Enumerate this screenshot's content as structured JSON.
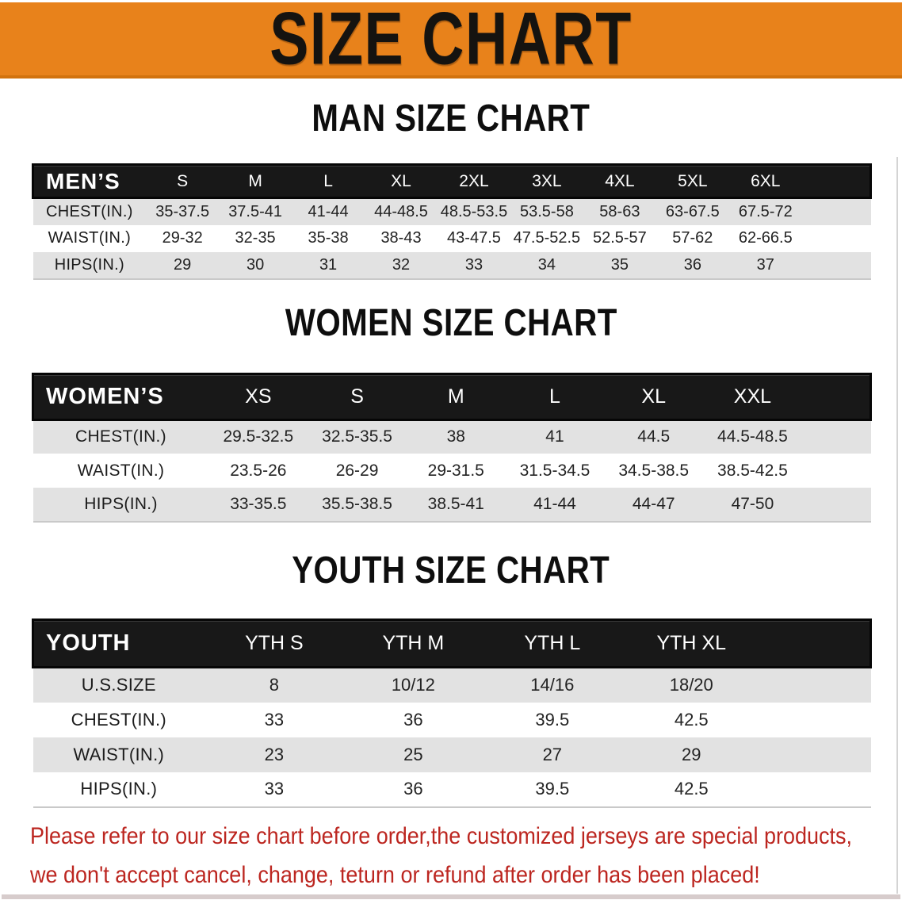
{
  "banner": {
    "title": "SIZE CHART"
  },
  "colors": {
    "accent_orange": "#E8821B",
    "accent_orange_dark": "#D2720D",
    "table_header_black": "#181818",
    "stripe_gray": "#E2E2E2",
    "note_red": "#BC2620"
  },
  "sections": [
    {
      "heading": "MAN SIZE CHART",
      "table": {
        "label": "MEN’S",
        "sizes": [
          "S",
          "M",
          "L",
          "XL",
          "2XL",
          "3XL",
          "4XL",
          "5XL",
          "6XL"
        ],
        "rows": [
          {
            "label": "CHEST(IN.)",
            "values": [
              "35-37.5",
              "37.5-41",
              "41-44",
              "44-48.5",
              "48.5-53.5",
              "53.5-58",
              "58-63",
              "63-67.5",
              "67.5-72"
            ]
          },
          {
            "label": "WAIST(IN.)",
            "values": [
              "29-32",
              "32-35",
              "35-38",
              "38-43",
              "43-47.5",
              "47.5-52.5",
              "52.5-57",
              "57-62",
              "62-66.5"
            ]
          },
          {
            "label": "HIPS(IN.)",
            "values": [
              "29",
              "30",
              "31",
              "32",
              "33",
              "34",
              "35",
              "36",
              "37"
            ]
          }
        ]
      }
    },
    {
      "heading": "WOMEN SIZE CHART",
      "table": {
        "label": "WOMEN’S",
        "sizes": [
          "XS",
          "S",
          "M",
          "L",
          "XL",
          "XXL"
        ],
        "rows": [
          {
            "label": "CHEST(IN.)",
            "values": [
              "29.5-32.5",
              "32.5-35.5",
              "38",
              "41",
              "44.5",
              "44.5-48.5"
            ]
          },
          {
            "label": "WAIST(IN.)",
            "values": [
              "23.5-26",
              "26-29",
              "29-31.5",
              "31.5-34.5",
              "34.5-38.5",
              "38.5-42.5"
            ]
          },
          {
            "label": "HIPS(IN.)",
            "values": [
              "33-35.5",
              "35.5-38.5",
              "38.5-41",
              "41-44",
              "44-47",
              "47-50"
            ]
          }
        ]
      }
    },
    {
      "heading": "YOUTH SIZE CHART",
      "table": {
        "label": "YOUTH",
        "sizes": [
          "YTH S",
          "YTH M",
          "YTH L",
          "YTH XL"
        ],
        "rows": [
          {
            "label": "U.S.SIZE",
            "values": [
              "8",
              "10/12",
              "14/16",
              "18/20"
            ]
          },
          {
            "label": "CHEST(IN.)",
            "values": [
              "33",
              "36",
              "39.5",
              "42.5"
            ]
          },
          {
            "label": "WAIST(IN.)",
            "values": [
              "23",
              "25",
              "27",
              "29"
            ]
          },
          {
            "label": "HIPS(IN.)",
            "values": [
              "33",
              "36",
              "39.5",
              "42.5"
            ]
          }
        ]
      }
    }
  ],
  "footnote": {
    "lines": [
      "Please refer to our size chart before order,the customized jerseys are special products,",
      "we don't accept cancel, change, teturn or refund after order has been placed!"
    ]
  }
}
